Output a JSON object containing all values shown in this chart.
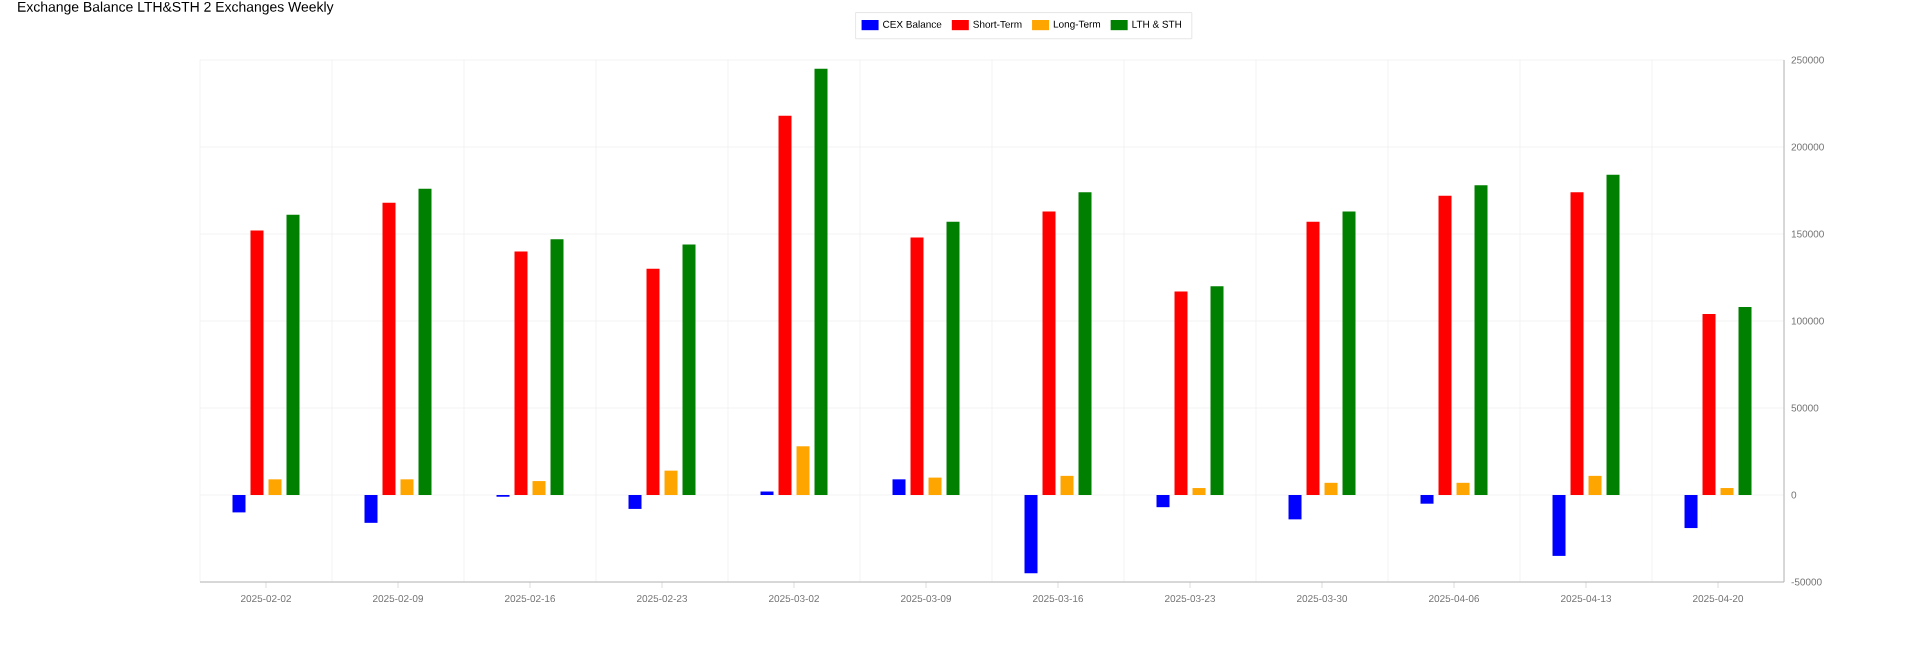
{
  "chart_data": {
    "type": "bar",
    "title": "Exchange Balance LTH&STH 2 Exchanges Weekly",
    "categories": [
      "2025-02-02",
      "2025-02-09",
      "2025-02-16",
      "2025-02-23",
      "2025-03-02",
      "2025-03-09",
      "2025-03-16",
      "2025-03-23",
      "2025-03-30",
      "2025-04-06",
      "2025-04-13",
      "2025-04-20"
    ],
    "series": [
      {
        "name": "CEX Balance",
        "color": "#0000ff",
        "values": [
          -10000,
          -16000,
          -1000,
          -8000,
          2000,
          9000,
          -45000,
          -7000,
          -14000,
          -5000,
          -35000,
          -19000
        ]
      },
      {
        "name": "Short-Term",
        "color": "#ff0000",
        "values": [
          152000,
          168000,
          140000,
          130000,
          218000,
          148000,
          163000,
          117000,
          157000,
          172000,
          174000,
          104000
        ]
      },
      {
        "name": "Long-Term",
        "color": "#ffa500",
        "values": [
          9000,
          9000,
          8000,
          14000,
          28000,
          10000,
          11000,
          4000,
          7000,
          7000,
          11000,
          4000
        ]
      },
      {
        "name": "LTH & STH",
        "color": "#008000",
        "values": [
          161000,
          176000,
          147000,
          144000,
          245000,
          157000,
          174000,
          120000,
          163000,
          178000,
          184000,
          108000
        ]
      }
    ],
    "ylim": [
      -50000,
      250000
    ],
    "yticks": [
      -50000,
      0,
      50000,
      100000,
      150000,
      200000,
      250000
    ],
    "grid": true,
    "legend": "top"
  }
}
